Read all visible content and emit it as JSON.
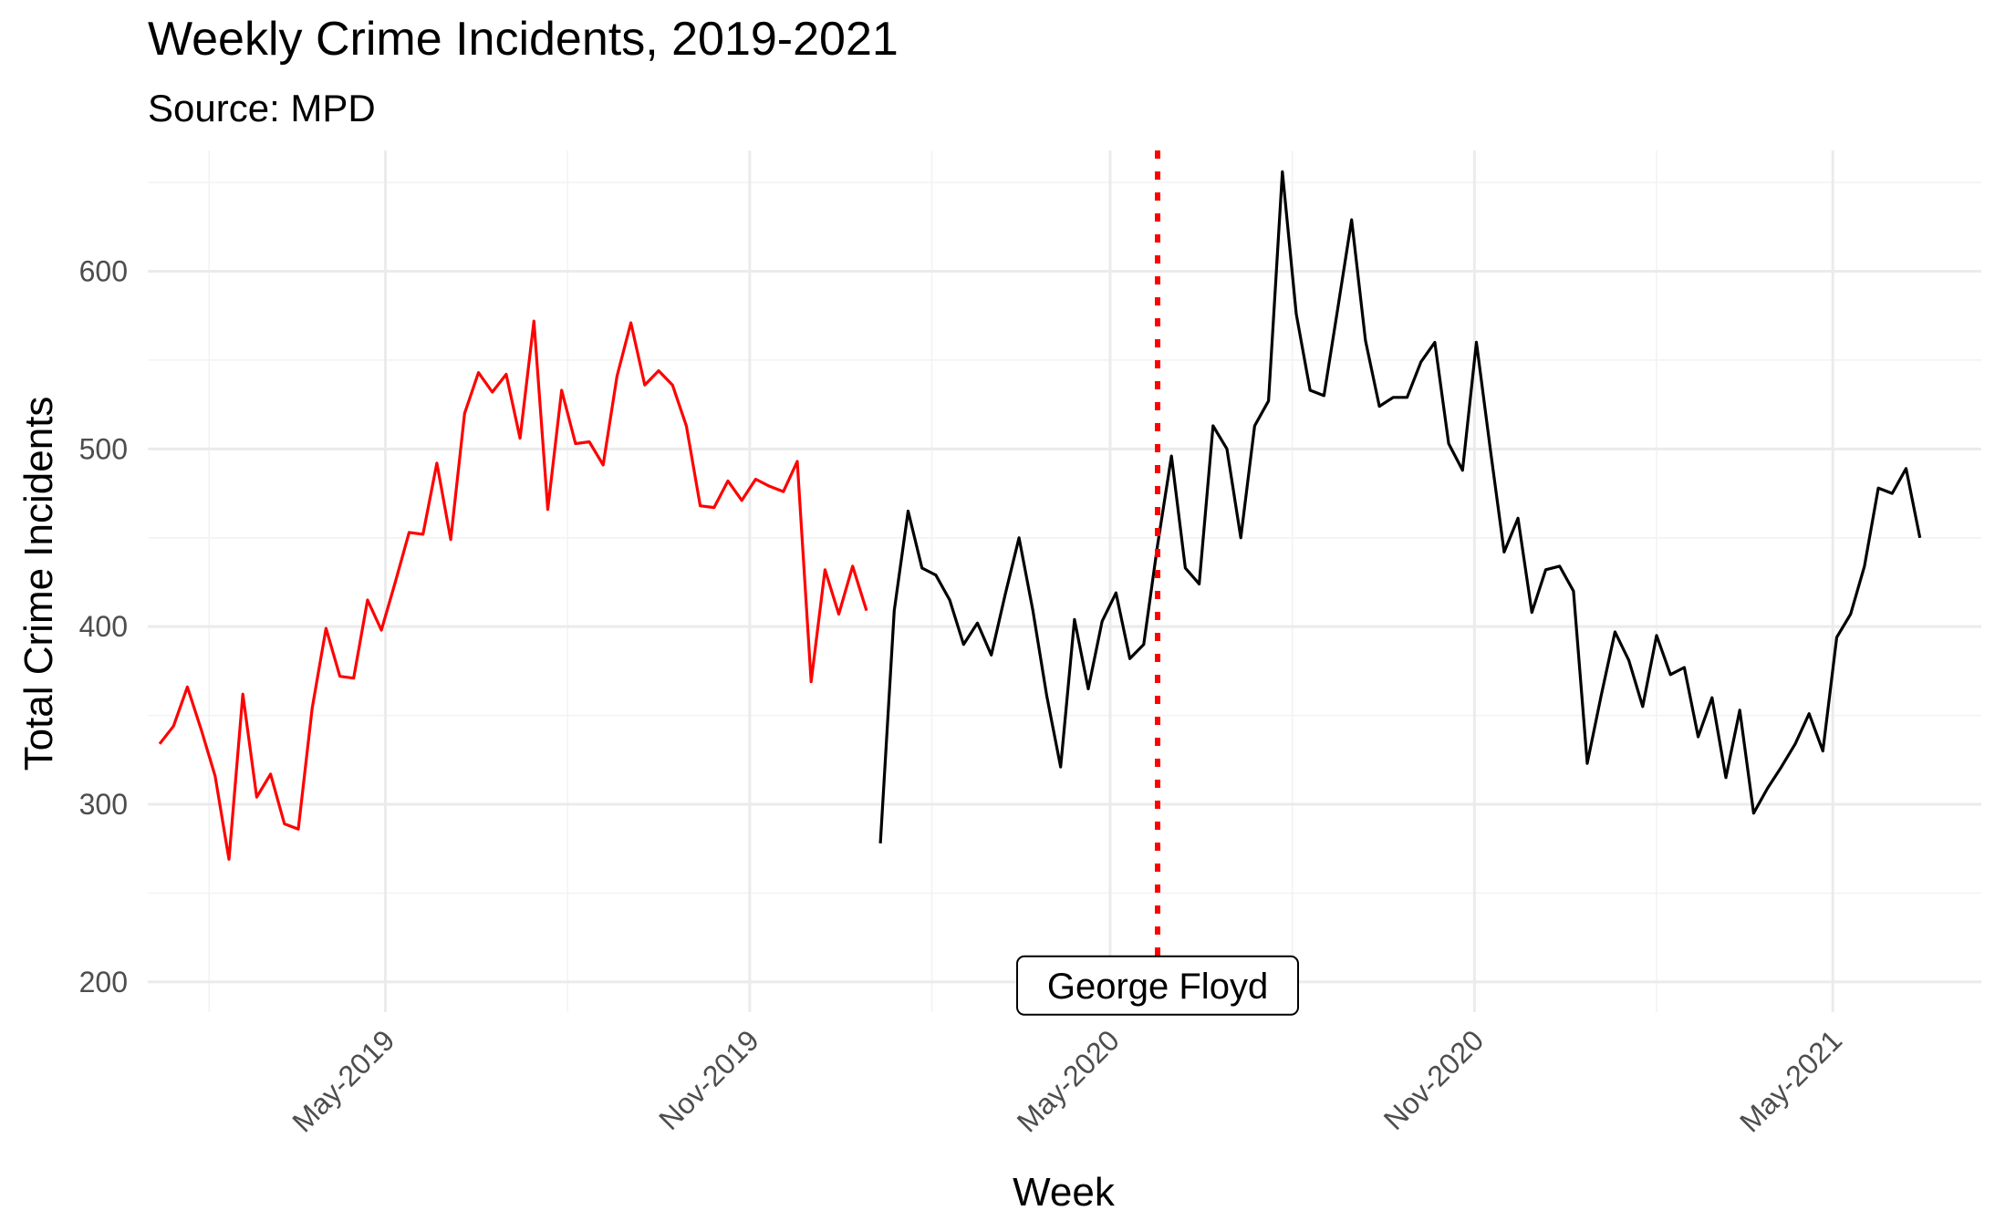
{
  "chart_data": {
    "type": "line",
    "title": "Weekly Crime Incidents, 2019-2021",
    "subtitle": "Source: MPD",
    "xlabel": "Week",
    "ylabel": "Total Crime Incidents",
    "ylim": [
      183,
      668
    ],
    "xlim": [
      "2019-01-01",
      "2021-07-15"
    ],
    "y_ticks": [
      200,
      300,
      400,
      500,
      600
    ],
    "x_ticks": [
      {
        "date": "2019-05-01",
        "label": "May-2019"
      },
      {
        "date": "2019-11-01",
        "label": "Nov-2019"
      },
      {
        "date": "2020-05-01",
        "label": "May-2020"
      },
      {
        "date": "2020-11-01",
        "label": "Nov-2020"
      },
      {
        "date": "2021-05-01",
        "label": "May-2021"
      }
    ],
    "x_minor_ticks": [
      "2019-02-01",
      "2019-08-01",
      "2020-02-01",
      "2020-08-01",
      "2021-02-01"
    ],
    "grid": true,
    "series": [
      {
        "color": "#ff0000",
        "points": [
          [
            "2019-01-07",
            334
          ],
          [
            "2019-01-14",
            344
          ],
          [
            "2019-01-21",
            366
          ],
          [
            "2019-01-28",
            342
          ],
          [
            "2019-02-04",
            316
          ],
          [
            "2019-02-11",
            269
          ],
          [
            "2019-02-18",
            362
          ],
          [
            "2019-02-25",
            304
          ],
          [
            "2019-03-04",
            317
          ],
          [
            "2019-03-11",
            289
          ],
          [
            "2019-03-18",
            286
          ],
          [
            "2019-03-25",
            354
          ],
          [
            "2019-04-01",
            399
          ],
          [
            "2019-04-08",
            372
          ],
          [
            "2019-04-15",
            371
          ],
          [
            "2019-04-22",
            415
          ],
          [
            "2019-04-29",
            398
          ],
          [
            "2019-05-06",
            425
          ],
          [
            "2019-05-13",
            453
          ],
          [
            "2019-05-20",
            452
          ],
          [
            "2019-05-27",
            492
          ],
          [
            "2019-06-03",
            449
          ],
          [
            "2019-06-10",
            520
          ],
          [
            "2019-06-17",
            543
          ],
          [
            "2019-06-24",
            532
          ],
          [
            "2019-07-01",
            542
          ],
          [
            "2019-07-08",
            506
          ],
          [
            "2019-07-15",
            572
          ],
          [
            "2019-07-22",
            466
          ],
          [
            "2019-07-29",
            533
          ],
          [
            "2019-08-05",
            503
          ],
          [
            "2019-08-12",
            504
          ],
          [
            "2019-08-19",
            491
          ],
          [
            "2019-08-26",
            541
          ],
          [
            "2019-09-02",
            571
          ],
          [
            "2019-09-09",
            536
          ],
          [
            "2019-09-16",
            544
          ],
          [
            "2019-09-23",
            536
          ],
          [
            "2019-09-30",
            513
          ],
          [
            "2019-10-07",
            468
          ],
          [
            "2019-10-14",
            467
          ],
          [
            "2019-10-21",
            482
          ],
          [
            "2019-10-28",
            471
          ],
          [
            "2019-11-04",
            483
          ],
          [
            "2019-11-11",
            479
          ],
          [
            "2019-11-18",
            476
          ],
          [
            "2019-11-25",
            493
          ],
          [
            "2019-12-02",
            369
          ],
          [
            "2019-12-09",
            432
          ],
          [
            "2019-12-16",
            407
          ],
          [
            "2019-12-23",
            434
          ],
          [
            "2019-12-30",
            409
          ]
        ]
      },
      {
        "color": "#000000",
        "points": [
          [
            "2020-01-06",
            278
          ],
          [
            "2020-01-13",
            409
          ],
          [
            "2020-01-20",
            465
          ],
          [
            "2020-01-27",
            433
          ],
          [
            "2020-02-03",
            429
          ],
          [
            "2020-02-10",
            415
          ],
          [
            "2020-02-17",
            390
          ],
          [
            "2020-02-24",
            402
          ],
          [
            "2020-03-02",
            384
          ],
          [
            "2020-03-09",
            418
          ],
          [
            "2020-03-16",
            450
          ],
          [
            "2020-03-23",
            409
          ],
          [
            "2020-03-30",
            361
          ],
          [
            "2020-04-06",
            321
          ],
          [
            "2020-04-13",
            404
          ],
          [
            "2020-04-20",
            365
          ],
          [
            "2020-04-27",
            403
          ],
          [
            "2020-05-04",
            419
          ],
          [
            "2020-05-11",
            382
          ],
          [
            "2020-05-18",
            390
          ],
          [
            "2020-05-25",
            446
          ],
          [
            "2020-06-01",
            496
          ],
          [
            "2020-06-08",
            433
          ],
          [
            "2020-06-15",
            424
          ],
          [
            "2020-06-22",
            513
          ],
          [
            "2020-06-29",
            500
          ],
          [
            "2020-07-06",
            450
          ],
          [
            "2020-07-13",
            513
          ],
          [
            "2020-07-20",
            527
          ],
          [
            "2020-07-27",
            656
          ],
          [
            "2020-08-03",
            576
          ],
          [
            "2020-08-10",
            533
          ],
          [
            "2020-08-17",
            530
          ],
          [
            "2020-08-24",
            579
          ],
          [
            "2020-08-31",
            629
          ],
          [
            "2020-09-07",
            561
          ],
          [
            "2020-09-14",
            524
          ],
          [
            "2020-09-21",
            529
          ],
          [
            "2020-09-28",
            529
          ],
          [
            "2020-10-05",
            549
          ],
          [
            "2020-10-12",
            560
          ],
          [
            "2020-10-19",
            503
          ],
          [
            "2020-10-26",
            488
          ],
          [
            "2020-11-02",
            560
          ],
          [
            "2020-11-09",
            500
          ],
          [
            "2020-11-16",
            442
          ],
          [
            "2020-11-23",
            461
          ],
          [
            "2020-11-30",
            408
          ],
          [
            "2020-12-07",
            432
          ],
          [
            "2020-12-14",
            434
          ],
          [
            "2020-12-21",
            420
          ],
          [
            "2020-12-28",
            323
          ],
          [
            "2021-01-04",
            361
          ],
          [
            "2021-01-11",
            397
          ],
          [
            "2021-01-18",
            381
          ],
          [
            "2021-01-25",
            355
          ],
          [
            "2021-02-01",
            395
          ],
          [
            "2021-02-08",
            373
          ],
          [
            "2021-02-15",
            377
          ],
          [
            "2021-02-22",
            338
          ],
          [
            "2021-03-01",
            360
          ],
          [
            "2021-03-08",
            315
          ],
          [
            "2021-03-15",
            353
          ],
          [
            "2021-03-22",
            295
          ],
          [
            "2021-03-29",
            309
          ],
          [
            "2021-04-05",
            321
          ],
          [
            "2021-04-12",
            334
          ],
          [
            "2021-04-19",
            351
          ],
          [
            "2021-04-26",
            330
          ],
          [
            "2021-05-03",
            394
          ],
          [
            "2021-05-10",
            407
          ],
          [
            "2021-05-17",
            434
          ],
          [
            "2021-05-24",
            478
          ],
          [
            "2021-05-31",
            475
          ],
          [
            "2021-06-07",
            489
          ],
          [
            "2021-06-14",
            450
          ]
        ]
      }
    ],
    "annotations": [
      {
        "type": "vline",
        "date": "2020-05-25",
        "color": "#ff0000",
        "style": "dotted",
        "label": "George Floyd",
        "label_y": 198
      }
    ]
  }
}
